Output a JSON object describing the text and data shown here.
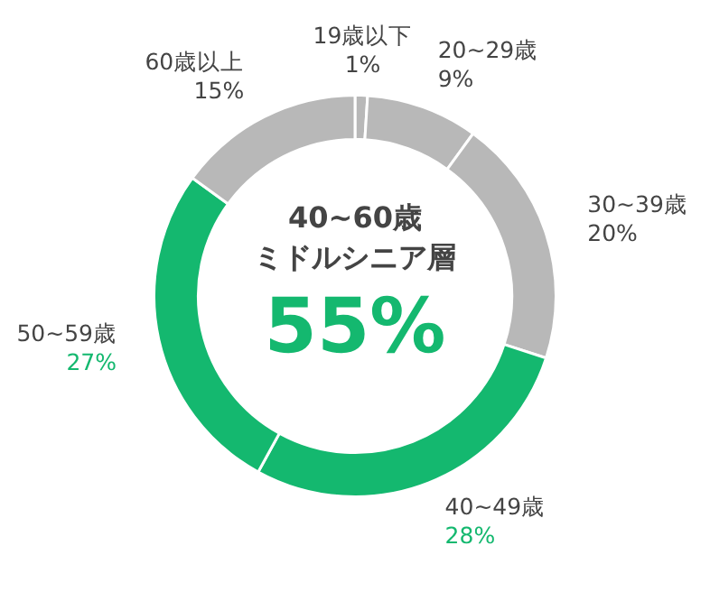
{
  "chart_data": {
    "type": "donut",
    "categories": [
      "19歳以下",
      "20~29歳",
      "30~39歳",
      "40~49歳",
      "50~59歳",
      "60歳以上"
    ],
    "values": [
      1,
      9,
      20,
      28,
      27,
      15
    ],
    "colors": [
      "#b8b8b8",
      "#b8b8b8",
      "#b8b8b8",
      "#14b86f",
      "#14b86f",
      "#b8b8b8"
    ],
    "value_labels": [
      "1%",
      "9%",
      "20%",
      "28%",
      "27%",
      "15%"
    ],
    "annotations": [
      "40~60歳",
      "ミドルシニア層",
      "55%"
    ],
    "legend": false
  }
}
